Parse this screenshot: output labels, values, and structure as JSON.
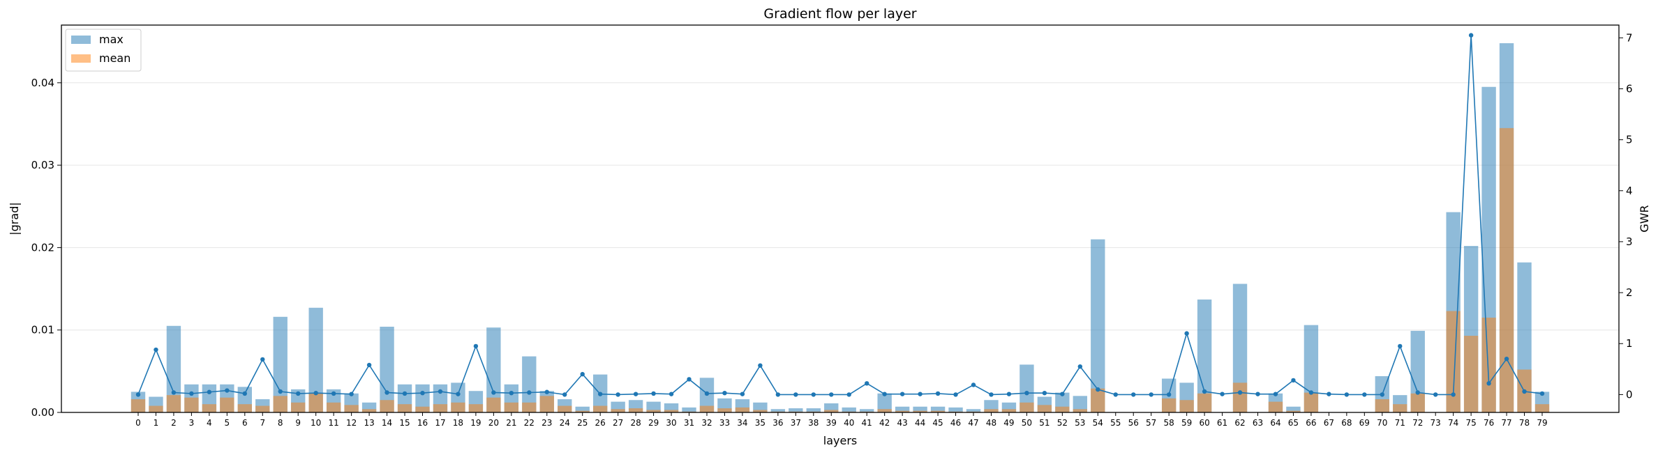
{
  "chart_data": {
    "type": "bar",
    "title": "Gradient flow per layer",
    "xlabel": "layers",
    "ylabel": "|grad|",
    "y2label": "GWR",
    "ylim": [
      0,
      0.047
    ],
    "y2lim": [
      -0.35,
      7.25
    ],
    "yticks": [
      "0.00",
      "0.01",
      "0.02",
      "0.03",
      "0.04"
    ],
    "yticks_values": [
      0,
      0.01,
      0.02,
      0.03,
      0.04
    ],
    "y2ticks": [
      "0",
      "1",
      "2",
      "3",
      "4",
      "5",
      "6",
      "7"
    ],
    "y2ticks_values": [
      0,
      1,
      2,
      3,
      4,
      5,
      6,
      7
    ],
    "grid": "horizontal",
    "legend_position": "upper-left",
    "categories": [
      "0",
      "1",
      "2",
      "3",
      "4",
      "5",
      "6",
      "7",
      "8",
      "9",
      "10",
      "11",
      "12",
      "13",
      "14",
      "15",
      "16",
      "17",
      "18",
      "19",
      "20",
      "21",
      "22",
      "23",
      "24",
      "25",
      "26",
      "27",
      "28",
      "29",
      "30",
      "31",
      "32",
      "33",
      "34",
      "35",
      "36",
      "37",
      "38",
      "39",
      "40",
      "41",
      "42",
      "43",
      "44",
      "45",
      "46",
      "47",
      "48",
      "49",
      "50",
      "51",
      "52",
      "53",
      "54",
      "55",
      "56",
      "57",
      "58",
      "59",
      "60",
      "61",
      "62",
      "63",
      "64",
      "65",
      "66",
      "67",
      "68",
      "69",
      "70",
      "71",
      "72",
      "73",
      "74",
      "75",
      "76",
      "77",
      "78",
      "79"
    ],
    "series": [
      {
        "name": "max",
        "kind": "bar",
        "color": "#1f77b4",
        "opacity": 0.5,
        "values": [
          0.0025,
          0.0019,
          0.0105,
          0.0034,
          0.0034,
          0.0034,
          0.0031,
          0.0016,
          0.0116,
          0.0028,
          0.0127,
          0.0028,
          0.0023,
          0.0012,
          0.0104,
          0.0034,
          0.0034,
          0.0034,
          0.0036,
          0.0026,
          0.0103,
          0.0034,
          0.0068,
          0.0026,
          0.0016,
          0.0007,
          0.0046,
          0.0013,
          0.0015,
          0.0013,
          0.0011,
          0.0006,
          0.0042,
          0.0017,
          0.0016,
          0.0012,
          0.0004,
          0.0005,
          0.0005,
          0.0011,
          0.0006,
          0.0004,
          0.0023,
          0.0007,
          0.0007,
          0.0007,
          0.0006,
          0.0004,
          0.0015,
          0.0012,
          0.0058,
          0.0019,
          0.0024,
          0.002,
          0.021,
          0.0,
          0.0,
          0.0,
          0.0041,
          0.0036,
          0.0137,
          0.0,
          0.0156,
          0.0,
          0.0023,
          0.0007,
          0.0106,
          0.0,
          0.0,
          0.0,
          0.0044,
          0.0021,
          0.0099,
          0.0,
          0.0243,
          0.0202,
          0.0395,
          0.0448,
          0.0182,
          0.0025
        ]
      },
      {
        "name": "mean",
        "kind": "bar",
        "color": "#ff7f0e",
        "opacity": 0.5,
        "values": [
          0.0016,
          0.0008,
          0.0021,
          0.0018,
          0.001,
          0.0018,
          0.001,
          0.0008,
          0.002,
          0.0012,
          0.0023,
          0.0012,
          0.0009,
          0.0004,
          0.0015,
          0.001,
          0.0007,
          0.001,
          0.0012,
          0.001,
          0.0018,
          0.0012,
          0.0012,
          0.002,
          0.0008,
          0.0002,
          0.0008,
          0.0004,
          0.0005,
          0.0003,
          0.0003,
          0.0001,
          0.0008,
          0.0005,
          0.0006,
          0.0003,
          0.0001,
          0.0001,
          0.0001,
          0.0003,
          0.0001,
          0.0001,
          0.0004,
          0.0002,
          0.0002,
          0.0002,
          0.0001,
          0.0001,
          0.0004,
          0.0004,
          0.0012,
          0.0009,
          0.0007,
          0.0004,
          0.0029,
          0.0,
          0.0,
          0.0,
          0.0017,
          0.0015,
          0.0023,
          0.0,
          0.0036,
          0.0,
          0.0013,
          0.0002,
          0.0024,
          0.0,
          0.0,
          0.0,
          0.0016,
          0.001,
          0.0023,
          0.0,
          0.0123,
          0.0093,
          0.0115,
          0.0345,
          0.0052,
          0.001
        ]
      },
      {
        "name": "GWR",
        "kind": "line",
        "axis": "right",
        "color": "#1f77b4",
        "values": [
          0.0,
          0.88,
          0.04,
          0.02,
          0.05,
          0.08,
          0.02,
          0.69,
          0.06,
          0.02,
          0.03,
          0.02,
          0.01,
          0.58,
          0.04,
          0.02,
          0.03,
          0.06,
          0.01,
          0.95,
          0.04,
          0.03,
          0.04,
          0.05,
          0.0,
          0.4,
          0.01,
          0.0,
          0.01,
          0.02,
          0.01,
          0.3,
          0.02,
          0.03,
          0.01,
          0.57,
          0.0,
          0.0,
          0.0,
          0.0,
          0.0,
          0.22,
          0.01,
          0.01,
          0.01,
          0.02,
          0.0,
          0.19,
          0.0,
          0.01,
          0.03,
          0.03,
          0.01,
          0.55,
          0.1,
          0.0,
          0.0,
          0.0,
          0.0,
          1.2,
          0.06,
          0.01,
          0.04,
          0.01,
          0.01,
          0.28,
          0.04,
          0.01,
          0.0,
          0.0,
          0.0,
          0.95,
          0.04,
          0.0,
          0.0,
          7.05,
          0.22,
          0.7,
          0.06,
          0.02
        ]
      }
    ]
  }
}
